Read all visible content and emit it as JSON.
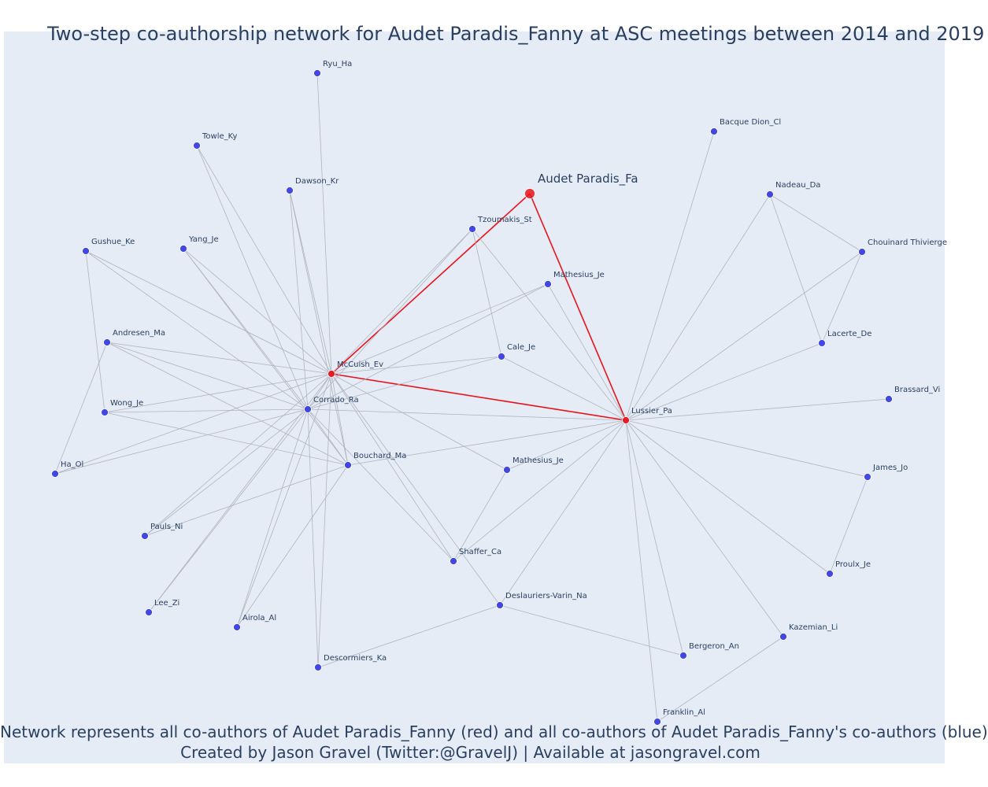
{
  "title": "Two-step co-authorship network for Audet Paradis_Fanny at ASC meetings between 2014 and 2019",
  "caption": {
    "line1": "Network represents all co-authors of Audet Paradis_Fanny (red) and all co-authors of Audet Paradis_Fanny's co-authors (blue)",
    "line2": "Created by Jason Gravel (Twitter:@GravelJ) | Available at jasongravel.com"
  },
  "colors": {
    "background": "#e5ecf6",
    "edge": "#b0b4bf",
    "focal_edge": "#e8141c",
    "red_node": "#e8141c",
    "blue_node": "#3b3fe0",
    "text": "#2a3f5f"
  },
  "nodes": [
    {
      "id": "audet",
      "label": "Audet Paradis_Fa",
      "group": "focal"
    },
    {
      "id": "mccuish",
      "label": "McCuish_Ev",
      "group": "red"
    },
    {
      "id": "lussier",
      "label": "Lussier_Pa",
      "group": "red"
    },
    {
      "id": "ryu",
      "label": "Ryu_Ha",
      "group": "blue"
    },
    {
      "id": "towle",
      "label": "Towle_Ky",
      "group": "blue"
    },
    {
      "id": "dawson",
      "label": "Dawson_Kr",
      "group": "blue"
    },
    {
      "id": "gushue",
      "label": "Gushue_Ke",
      "group": "blue"
    },
    {
      "id": "yang",
      "label": "Yang_Je",
      "group": "blue"
    },
    {
      "id": "andresen",
      "label": "Andresen_Ma",
      "group": "blue"
    },
    {
      "id": "wong",
      "label": "Wong_Je",
      "group": "blue"
    },
    {
      "id": "ha",
      "label": "Ha_Ol",
      "group": "blue"
    },
    {
      "id": "pauls",
      "label": "Pauls_Ni",
      "group": "blue"
    },
    {
      "id": "lee",
      "label": "Lee_Zi",
      "group": "blue"
    },
    {
      "id": "airola",
      "label": "Airola_Al",
      "group": "blue"
    },
    {
      "id": "descormiers",
      "label": "Descormiers_Ka",
      "group": "blue"
    },
    {
      "id": "corrado",
      "label": "Corrado_Ra",
      "group": "blue"
    },
    {
      "id": "bouchard",
      "label": "Bouchard_Ma",
      "group": "blue"
    },
    {
      "id": "tzoumakis",
      "label": "Tzoumakis_St",
      "group": "blue"
    },
    {
      "id": "mathesius1",
      "label": "Mathesius_Je",
      "group": "blue"
    },
    {
      "id": "cale",
      "label": "Cale_Je",
      "group": "blue"
    },
    {
      "id": "mathesius2",
      "label": "Mathesius_Je",
      "group": "blue"
    },
    {
      "id": "shaffer",
      "label": "Shaffer_Ca",
      "group": "blue"
    },
    {
      "id": "deslauriers",
      "label": "Deslauriers-Varin_Na",
      "group": "blue"
    },
    {
      "id": "bacque",
      "label": "Bacque Dion_Cl",
      "group": "blue"
    },
    {
      "id": "nadeau",
      "label": "Nadeau_Da",
      "group": "blue"
    },
    {
      "id": "chouinard",
      "label": "Chouinard Thivierge",
      "group": "blue"
    },
    {
      "id": "lacerte",
      "label": "Lacerte_De",
      "group": "blue"
    },
    {
      "id": "brassard",
      "label": "Brassard_Vi",
      "group": "blue"
    },
    {
      "id": "james",
      "label": "James_Jo",
      "group": "blue"
    },
    {
      "id": "proulx",
      "label": "Proulx_Je",
      "group": "blue"
    },
    {
      "id": "kazemian",
      "label": "Kazemian_Li",
      "group": "blue"
    },
    {
      "id": "bergeron",
      "label": "Bergeron_An",
      "group": "blue"
    },
    {
      "id": "franklin",
      "label": "Franklin_Al",
      "group": "blue"
    }
  ],
  "edges": [
    [
      "audet",
      "mccuish"
    ],
    [
      "audet",
      "lussier"
    ],
    [
      "mccuish",
      "lussier"
    ],
    [
      "mccuish",
      "ryu"
    ],
    [
      "mccuish",
      "towle"
    ],
    [
      "mccuish",
      "dawson"
    ],
    [
      "mccuish",
      "gushue"
    ],
    [
      "mccuish",
      "yang"
    ],
    [
      "mccuish",
      "andresen"
    ],
    [
      "mccuish",
      "wong"
    ],
    [
      "mccuish",
      "ha"
    ],
    [
      "mccuish",
      "pauls"
    ],
    [
      "mccuish",
      "lee"
    ],
    [
      "mccuish",
      "airola"
    ],
    [
      "mccuish",
      "descormiers"
    ],
    [
      "mccuish",
      "corrado"
    ],
    [
      "mccuish",
      "bouchard"
    ],
    [
      "mccuish",
      "tzoumakis"
    ],
    [
      "mccuish",
      "mathesius1"
    ],
    [
      "mccuish",
      "cale"
    ],
    [
      "mccuish",
      "mathesius2"
    ],
    [
      "mccuish",
      "shaffer"
    ],
    [
      "mccuish",
      "deslauriers"
    ],
    [
      "corrado",
      "towle"
    ],
    [
      "corrado",
      "dawson"
    ],
    [
      "corrado",
      "gushue"
    ],
    [
      "corrado",
      "yang"
    ],
    [
      "corrado",
      "andresen"
    ],
    [
      "corrado",
      "wong"
    ],
    [
      "corrado",
      "ha"
    ],
    [
      "corrado",
      "pauls"
    ],
    [
      "corrado",
      "lee"
    ],
    [
      "corrado",
      "airola"
    ],
    [
      "corrado",
      "descormiers"
    ],
    [
      "corrado",
      "bouchard"
    ],
    [
      "corrado",
      "tzoumakis"
    ],
    [
      "corrado",
      "mathesius1"
    ],
    [
      "corrado",
      "cale"
    ],
    [
      "corrado",
      "shaffer"
    ],
    [
      "corrado",
      "lussier"
    ],
    [
      "bouchard",
      "yang"
    ],
    [
      "bouchard",
      "dawson"
    ],
    [
      "bouchard",
      "andresen"
    ],
    [
      "bouchard",
      "wong"
    ],
    [
      "bouchard",
      "pauls"
    ],
    [
      "bouchard",
      "airola"
    ],
    [
      "bouchard",
      "lussier"
    ],
    [
      "gushue",
      "wong"
    ],
    [
      "andresen",
      "ha"
    ],
    [
      "tzoumakis",
      "cale"
    ],
    [
      "tzoumakis",
      "lussier"
    ],
    [
      "mathesius1",
      "lussier"
    ],
    [
      "cale",
      "lussier"
    ],
    [
      "mathesius2",
      "shaffer"
    ],
    [
      "shaffer",
      "lussier"
    ],
    [
      "deslauriers",
      "descormiers"
    ],
    [
      "deslauriers",
      "lussier"
    ],
    [
      "deslauriers",
      "bergeron"
    ],
    [
      "lussier",
      "bacque"
    ],
    [
      "lussier",
      "nadeau"
    ],
    [
      "lussier",
      "chouinard"
    ],
    [
      "lussier",
      "lacerte"
    ],
    [
      "lussier",
      "brassard"
    ],
    [
      "lussier",
      "james"
    ],
    [
      "lussier",
      "proulx"
    ],
    [
      "lussier",
      "kazemian"
    ],
    [
      "lussier",
      "bergeron"
    ],
    [
      "lussier",
      "franklin"
    ],
    [
      "lussier",
      "mathesius2"
    ],
    [
      "nadeau",
      "chouinard"
    ],
    [
      "nadeau",
      "lacerte"
    ],
    [
      "chouinard",
      "lacerte"
    ],
    [
      "james",
      "proulx"
    ],
    [
      "kazemian",
      "franklin"
    ]
  ]
}
